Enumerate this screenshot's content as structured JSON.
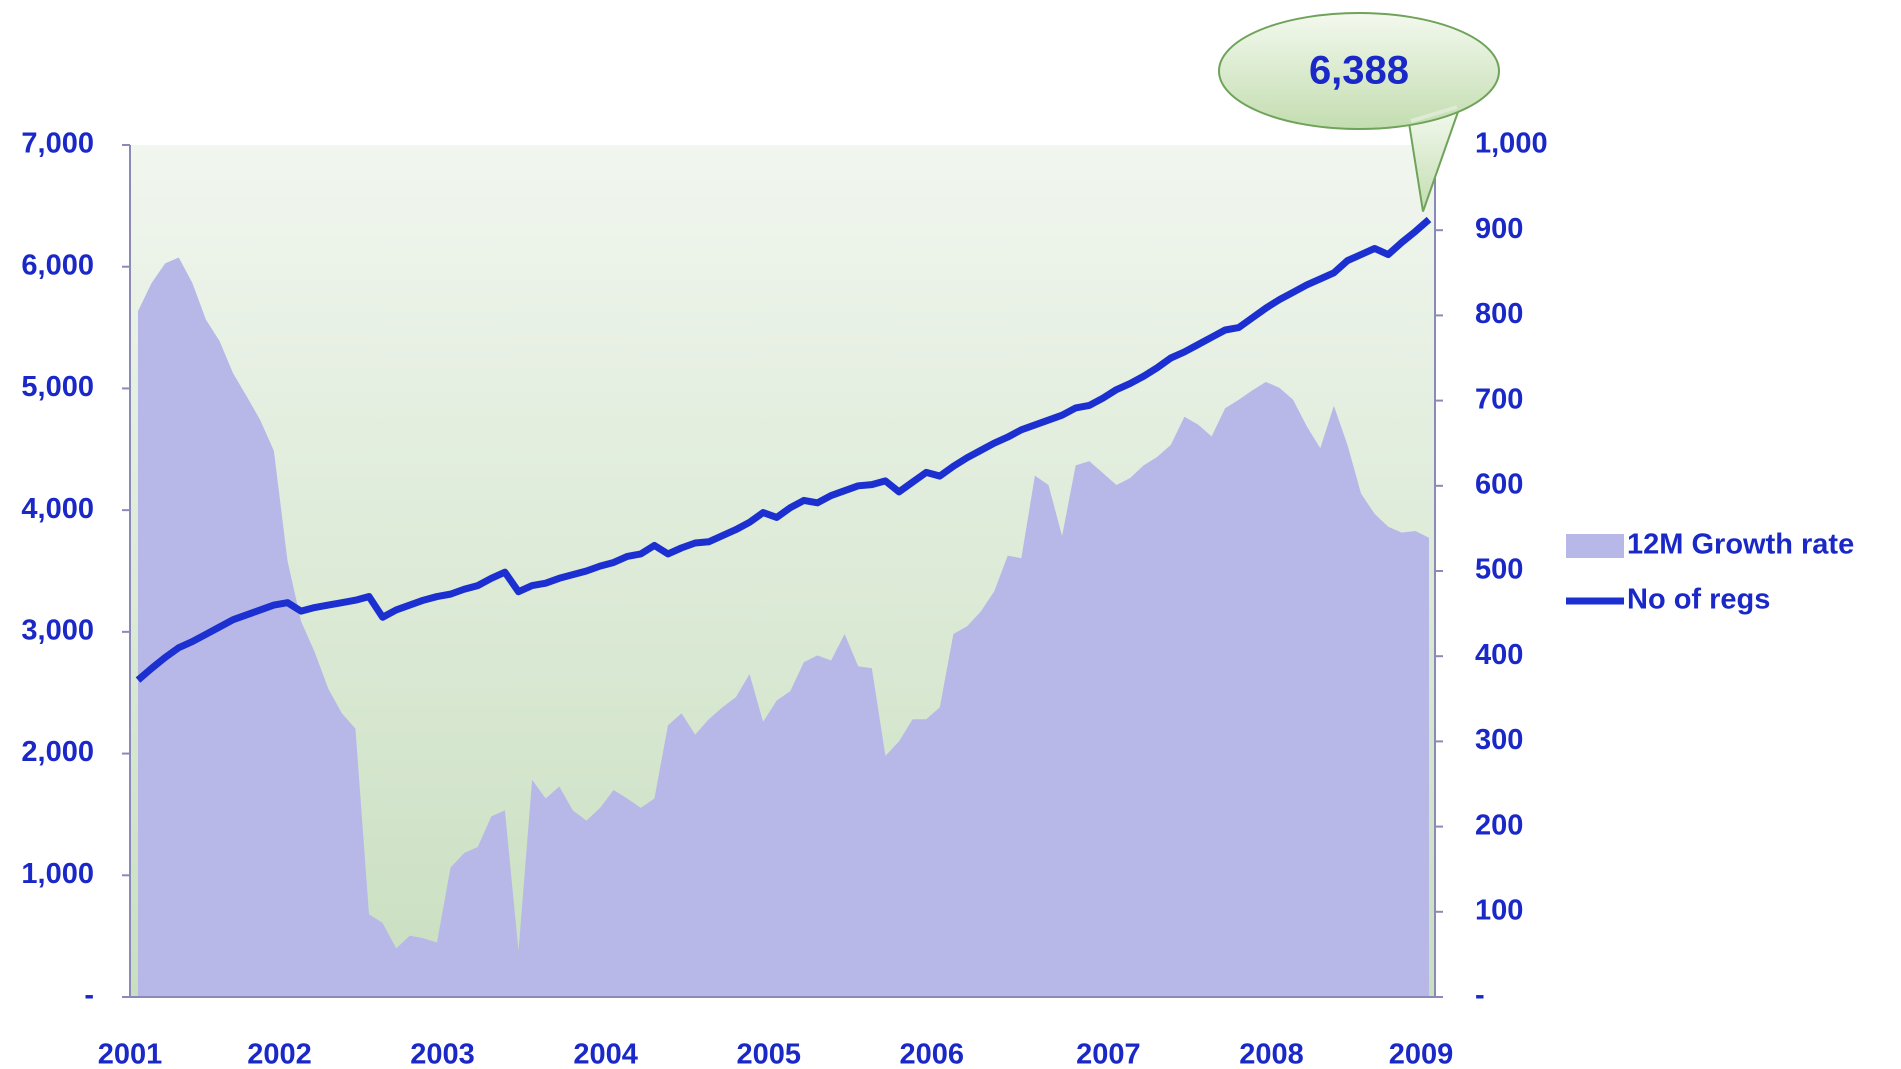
{
  "chart_data": {
    "type": "line",
    "annotation": "6,388",
    "categories": [
      "2001",
      null,
      null,
      null,
      null,
      null,
      null,
      null,
      null,
      null,
      null,
      "2002",
      null,
      null,
      null,
      null,
      null,
      null,
      null,
      null,
      null,
      null,
      null,
      "2003",
      null,
      null,
      null,
      null,
      null,
      null,
      null,
      null,
      null,
      null,
      null,
      "2004",
      null,
      null,
      null,
      null,
      null,
      null,
      null,
      null,
      null,
      null,
      null,
      "2005",
      null,
      null,
      null,
      null,
      null,
      null,
      null,
      null,
      null,
      null,
      null,
      "2006",
      null,
      null,
      null,
      null,
      null,
      null,
      null,
      null,
      null,
      null,
      null,
      null,
      "2007",
      null,
      null,
      null,
      null,
      null,
      null,
      null,
      null,
      null,
      null,
      null,
      "2008",
      null,
      null,
      null,
      null,
      null,
      null,
      null,
      null,
      null,
      null,
      "2009"
    ],
    "series": [
      {
        "name": "12M Growth rate",
        "type": "area",
        "axis": "y2",
        "color": "#b8b8e8",
        "values": [
          805,
          838,
          861,
          868,
          838,
          795,
          770,
          732,
          705,
          677,
          641,
          512,
          441,
          405,
          362,
          333,
          315,
          97,
          87,
          57,
          72,
          69,
          64,
          152,
          169,
          176,
          212,
          219,
          54,
          255,
          233,
          247,
          219,
          207,
          222,
          243,
          233,
          222,
          233,
          319,
          333,
          308,
          326,
          340,
          352,
          379,
          323,
          348,
          359,
          393,
          401,
          395,
          426,
          388,
          386,
          283,
          300,
          326,
          326,
          340,
          426,
          435,
          452,
          476,
          518,
          515,
          612,
          601,
          541,
          624,
          629,
          615,
          601,
          609,
          624,
          634,
          648,
          681,
          672,
          658,
          691,
          701,
          712,
          722,
          715,
          701,
          670,
          644,
          694,
          648,
          591,
          567,
          552,
          545,
          547,
          539
        ]
      },
      {
        "name": "No of regs",
        "type": "line",
        "color": "#1c2fd0",
        "values": [
          2604,
          2700,
          2790,
          2870,
          2920,
          2980,
          3040,
          3100,
          3140,
          3180,
          3220,
          3240,
          3170,
          3200,
          3220,
          3240,
          3260,
          3290,
          3120,
          3180,
          3220,
          3260,
          3290,
          3310,
          3350,
          3380,
          3440,
          3490,
          3330,
          3380,
          3400,
          3440,
          3470,
          3500,
          3540,
          3570,
          3620,
          3640,
          3710,
          3640,
          3690,
          3730,
          3740,
          3790,
          3840,
          3900,
          3980,
          3940,
          4020,
          4080,
          4060,
          4120,
          4160,
          4200,
          4210,
          4240,
          4150,
          4230,
          4310,
          4280,
          4360,
          4430,
          4490,
          4550,
          4600,
          4660,
          4700,
          4740,
          4780,
          4840,
          4860,
          4920,
          4990,
          5040,
          5100,
          5170,
          5250,
          5300,
          5360,
          5420,
          5480,
          5500,
          5580,
          5660,
          5730,
          5790,
          5850,
          5900,
          5950,
          6050,
          6100,
          6150,
          6100,
          6200,
          6290,
          6388
        ]
      }
    ],
    "ylim": [
      0,
      7000
    ],
    "yticks": [
      {
        "value": 0,
        "label": "-"
      },
      {
        "value": 1000,
        "label": "1,000"
      },
      {
        "value": 2000,
        "label": "2,000"
      },
      {
        "value": 3000,
        "label": "3,000"
      },
      {
        "value": 4000,
        "label": "4,000"
      },
      {
        "value": 5000,
        "label": "5,000"
      },
      {
        "value": 6000,
        "label": "6,000"
      },
      {
        "value": 7000,
        "label": "7,000"
      }
    ],
    "y2lim": [
      0,
      1000
    ],
    "y2ticks": [
      {
        "value": 0,
        "label": "-"
      },
      100,
      200,
      300,
      400,
      500,
      600,
      700,
      800,
      900,
      {
        "value": 1000,
        "label": "1,000"
      }
    ],
    "grid": false,
    "legend": "right"
  }
}
